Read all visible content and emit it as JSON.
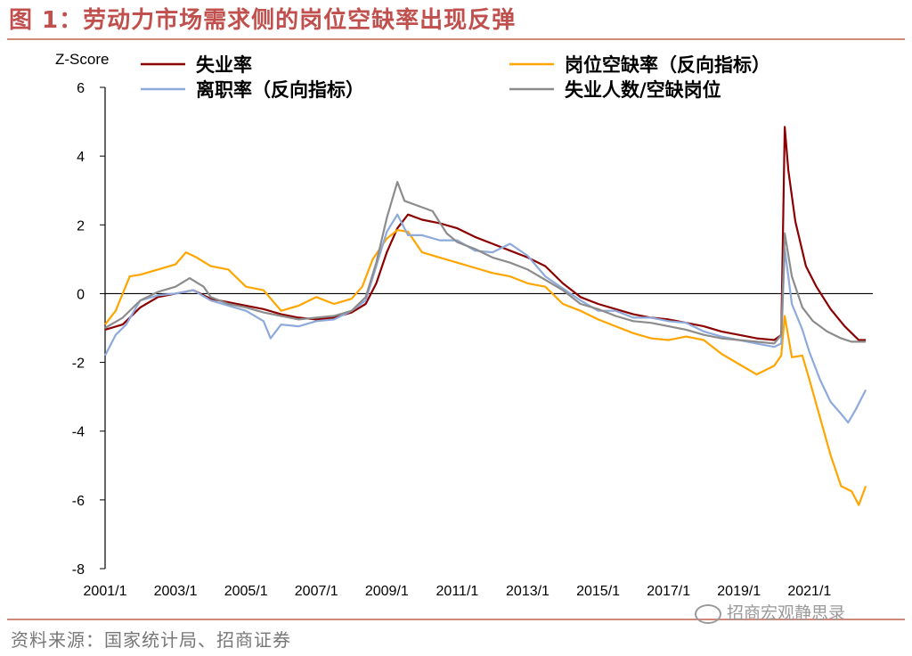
{
  "title": "图 1：劳动力市场需求侧的岗位空缺率出现反弹",
  "source": "资料来源：国家统计局、招商证券",
  "watermark": "招商宏观静思录",
  "chart_data": {
    "type": "line",
    "ylabel": "Z-Score",
    "ylim": [
      -8,
      6
    ],
    "yticks": [
      6,
      4,
      2,
      0,
      -2,
      -4,
      -6,
      -8
    ],
    "xlim": [
      2001.0,
      2022.8
    ],
    "xticks": [
      {
        "label": "2001/1",
        "value": 2001.0
      },
      {
        "label": "2003/1",
        "value": 2003.0
      },
      {
        "label": "2005/1",
        "value": 2005.0
      },
      {
        "label": "2007/1",
        "value": 2007.0
      },
      {
        "label": "2009/1",
        "value": 2009.0
      },
      {
        "label": "2011/1",
        "value": 2011.0
      },
      {
        "label": "2013/1",
        "value": 2013.0
      },
      {
        "label": "2015/1",
        "value": 2015.0
      },
      {
        "label": "2017/1",
        "value": 2017.0
      },
      {
        "label": "2019/1",
        "value": 2019.0
      },
      {
        "label": "2021/1",
        "value": 2021.0
      }
    ],
    "zero_line": true,
    "legend_position": "top",
    "series": [
      {
        "name": "失业率",
        "color": "#8b0000",
        "points": [
          [
            2001.0,
            -1.05
          ],
          [
            2001.5,
            -0.9
          ],
          [
            2002.0,
            -0.4
          ],
          [
            2002.5,
            -0.1
          ],
          [
            2003.0,
            0.0
          ],
          [
            2003.5,
            0.1
          ],
          [
            2004.0,
            -0.15
          ],
          [
            2004.5,
            -0.25
          ],
          [
            2005.0,
            -0.35
          ],
          [
            2005.5,
            -0.45
          ],
          [
            2006.0,
            -0.6
          ],
          [
            2006.5,
            -0.7
          ],
          [
            2007.0,
            -0.75
          ],
          [
            2007.5,
            -0.7
          ],
          [
            2008.0,
            -0.55
          ],
          [
            2008.4,
            -0.3
          ],
          [
            2008.7,
            0.3
          ],
          [
            2009.0,
            1.2
          ],
          [
            2009.3,
            1.9
          ],
          [
            2009.6,
            2.3
          ],
          [
            2010.0,
            2.15
          ],
          [
            2010.5,
            2.05
          ],
          [
            2011.0,
            1.9
          ],
          [
            2011.5,
            1.65
          ],
          [
            2012.0,
            1.45
          ],
          [
            2012.5,
            1.25
          ],
          [
            2013.0,
            1.05
          ],
          [
            2013.5,
            0.8
          ],
          [
            2014.0,
            0.3
          ],
          [
            2014.5,
            -0.1
          ],
          [
            2015.0,
            -0.3
          ],
          [
            2015.5,
            -0.45
          ],
          [
            2016.0,
            -0.6
          ],
          [
            2016.5,
            -0.7
          ],
          [
            2017.0,
            -0.75
          ],
          [
            2017.5,
            -0.85
          ],
          [
            2018.0,
            -0.95
          ],
          [
            2018.5,
            -1.1
          ],
          [
            2019.0,
            -1.2
          ],
          [
            2019.5,
            -1.3
          ],
          [
            2020.0,
            -1.35
          ],
          [
            2020.2,
            -1.2
          ],
          [
            2020.3,
            4.85
          ],
          [
            2020.4,
            3.6
          ],
          [
            2020.6,
            2.1
          ],
          [
            2020.9,
            0.8
          ],
          [
            2021.2,
            0.2
          ],
          [
            2021.6,
            -0.45
          ],
          [
            2022.0,
            -0.95
          ],
          [
            2022.4,
            -1.35
          ],
          [
            2022.6,
            -1.35
          ]
        ]
      },
      {
        "name": "岗位空缺率（反向指标）",
        "color": "#ffa500",
        "points": [
          [
            2001.0,
            -0.9
          ],
          [
            2001.3,
            -0.5
          ],
          [
            2001.7,
            0.5
          ],
          [
            2002.0,
            0.55
          ],
          [
            2002.5,
            0.7
          ],
          [
            2003.0,
            0.85
          ],
          [
            2003.3,
            1.2
          ],
          [
            2003.6,
            1.05
          ],
          [
            2004.0,
            0.8
          ],
          [
            2004.5,
            0.7
          ],
          [
            2005.0,
            0.2
          ],
          [
            2005.5,
            0.1
          ],
          [
            2006.0,
            -0.5
          ],
          [
            2006.5,
            -0.35
          ],
          [
            2007.0,
            -0.1
          ],
          [
            2007.5,
            -0.3
          ],
          [
            2008.0,
            -0.15
          ],
          [
            2008.3,
            0.2
          ],
          [
            2008.6,
            1.0
          ],
          [
            2009.0,
            1.6
          ],
          [
            2009.3,
            1.85
          ],
          [
            2009.6,
            1.8
          ],
          [
            2010.0,
            1.2
          ],
          [
            2010.5,
            1.05
          ],
          [
            2011.0,
            0.9
          ],
          [
            2011.5,
            0.75
          ],
          [
            2012.0,
            0.6
          ],
          [
            2012.5,
            0.5
          ],
          [
            2013.0,
            0.3
          ],
          [
            2013.5,
            0.2
          ],
          [
            2014.0,
            -0.3
          ],
          [
            2014.5,
            -0.5
          ],
          [
            2015.0,
            -0.75
          ],
          [
            2015.5,
            -0.95
          ],
          [
            2016.0,
            -1.15
          ],
          [
            2016.5,
            -1.3
          ],
          [
            2017.0,
            -1.35
          ],
          [
            2017.5,
            -1.25
          ],
          [
            2018.0,
            -1.35
          ],
          [
            2018.5,
            -1.75
          ],
          [
            2019.0,
            -2.05
          ],
          [
            2019.5,
            -2.35
          ],
          [
            2019.8,
            -2.2
          ],
          [
            2020.0,
            -2.1
          ],
          [
            2020.2,
            -1.8
          ],
          [
            2020.3,
            -0.65
          ],
          [
            2020.5,
            -1.85
          ],
          [
            2020.8,
            -1.8
          ],
          [
            2021.0,
            -2.5
          ],
          [
            2021.3,
            -3.6
          ],
          [
            2021.6,
            -4.7
          ],
          [
            2021.9,
            -5.6
          ],
          [
            2022.2,
            -5.75
          ],
          [
            2022.4,
            -6.15
          ],
          [
            2022.6,
            -5.6
          ]
        ]
      },
      {
        "name": "离职率（反向指标）",
        "color": "#8eaadb",
        "points": [
          [
            2001.0,
            -1.8
          ],
          [
            2001.3,
            -1.2
          ],
          [
            2001.6,
            -0.9
          ],
          [
            2002.0,
            -0.2
          ],
          [
            2002.5,
            -0.05
          ],
          [
            2003.0,
            0.0
          ],
          [
            2003.5,
            0.1
          ],
          [
            2004.0,
            -0.2
          ],
          [
            2004.5,
            -0.35
          ],
          [
            2005.0,
            -0.5
          ],
          [
            2005.5,
            -0.8
          ],
          [
            2005.7,
            -1.3
          ],
          [
            2006.0,
            -0.9
          ],
          [
            2006.5,
            -0.95
          ],
          [
            2007.0,
            -0.8
          ],
          [
            2007.5,
            -0.75
          ],
          [
            2008.0,
            -0.5
          ],
          [
            2008.4,
            -0.2
          ],
          [
            2008.7,
            0.8
          ],
          [
            2009.0,
            1.8
          ],
          [
            2009.3,
            2.3
          ],
          [
            2009.6,
            1.7
          ],
          [
            2010.0,
            1.7
          ],
          [
            2010.5,
            1.55
          ],
          [
            2011.0,
            1.55
          ],
          [
            2011.5,
            1.25
          ],
          [
            2012.0,
            1.2
          ],
          [
            2012.5,
            1.45
          ],
          [
            2013.0,
            1.1
          ],
          [
            2013.5,
            0.5
          ],
          [
            2014.0,
            0.15
          ],
          [
            2014.5,
            -0.2
          ],
          [
            2015.0,
            -0.5
          ],
          [
            2015.5,
            -0.5
          ],
          [
            2016.0,
            -0.7
          ],
          [
            2016.5,
            -0.7
          ],
          [
            2017.0,
            -0.8
          ],
          [
            2017.5,
            -0.85
          ],
          [
            2018.0,
            -1.1
          ],
          [
            2018.5,
            -1.25
          ],
          [
            2019.0,
            -1.35
          ],
          [
            2019.5,
            -1.45
          ],
          [
            2020.0,
            -1.55
          ],
          [
            2020.2,
            -1.45
          ],
          [
            2020.3,
            1.3
          ],
          [
            2020.5,
            -0.3
          ],
          [
            2020.8,
            -1.05
          ],
          [
            2021.0,
            -1.7
          ],
          [
            2021.3,
            -2.5
          ],
          [
            2021.6,
            -3.15
          ],
          [
            2021.9,
            -3.5
          ],
          [
            2022.1,
            -3.75
          ],
          [
            2022.3,
            -3.4
          ],
          [
            2022.6,
            -2.8
          ]
        ]
      },
      {
        "name": "失业人数/空缺岗位",
        "color": "#8c8c8c",
        "points": [
          [
            2001.0,
            -1.0
          ],
          [
            2001.5,
            -0.7
          ],
          [
            2002.0,
            -0.2
          ],
          [
            2002.5,
            0.05
          ],
          [
            2003.0,
            0.2
          ],
          [
            2003.4,
            0.45
          ],
          [
            2003.8,
            0.2
          ],
          [
            2004.0,
            -0.1
          ],
          [
            2004.5,
            -0.3
          ],
          [
            2005.0,
            -0.4
          ],
          [
            2005.5,
            -0.55
          ],
          [
            2006.0,
            -0.65
          ],
          [
            2006.5,
            -0.75
          ],
          [
            2007.0,
            -0.7
          ],
          [
            2007.5,
            -0.65
          ],
          [
            2008.0,
            -0.5
          ],
          [
            2008.4,
            -0.1
          ],
          [
            2008.7,
            0.9
          ],
          [
            2009.0,
            2.2
          ],
          [
            2009.3,
            3.25
          ],
          [
            2009.5,
            2.7
          ],
          [
            2009.9,
            2.55
          ],
          [
            2010.3,
            2.4
          ],
          [
            2010.7,
            1.75
          ],
          [
            2011.0,
            1.5
          ],
          [
            2011.5,
            1.3
          ],
          [
            2012.0,
            1.05
          ],
          [
            2012.5,
            0.9
          ],
          [
            2013.0,
            0.7
          ],
          [
            2013.5,
            0.4
          ],
          [
            2014.0,
            0.1
          ],
          [
            2014.5,
            -0.3
          ],
          [
            2015.0,
            -0.45
          ],
          [
            2015.5,
            -0.65
          ],
          [
            2016.0,
            -0.8
          ],
          [
            2016.5,
            -0.85
          ],
          [
            2017.0,
            -0.95
          ],
          [
            2017.5,
            -1.05
          ],
          [
            2018.0,
            -1.2
          ],
          [
            2018.5,
            -1.3
          ],
          [
            2019.0,
            -1.35
          ],
          [
            2019.5,
            -1.4
          ],
          [
            2020.0,
            -1.45
          ],
          [
            2020.2,
            -1.2
          ],
          [
            2020.3,
            1.75
          ],
          [
            2020.5,
            0.5
          ],
          [
            2020.8,
            -0.4
          ],
          [
            2021.1,
            -0.8
          ],
          [
            2021.5,
            -1.1
          ],
          [
            2021.9,
            -1.3
          ],
          [
            2022.2,
            -1.4
          ],
          [
            2022.6,
            -1.4
          ]
        ]
      }
    ]
  }
}
